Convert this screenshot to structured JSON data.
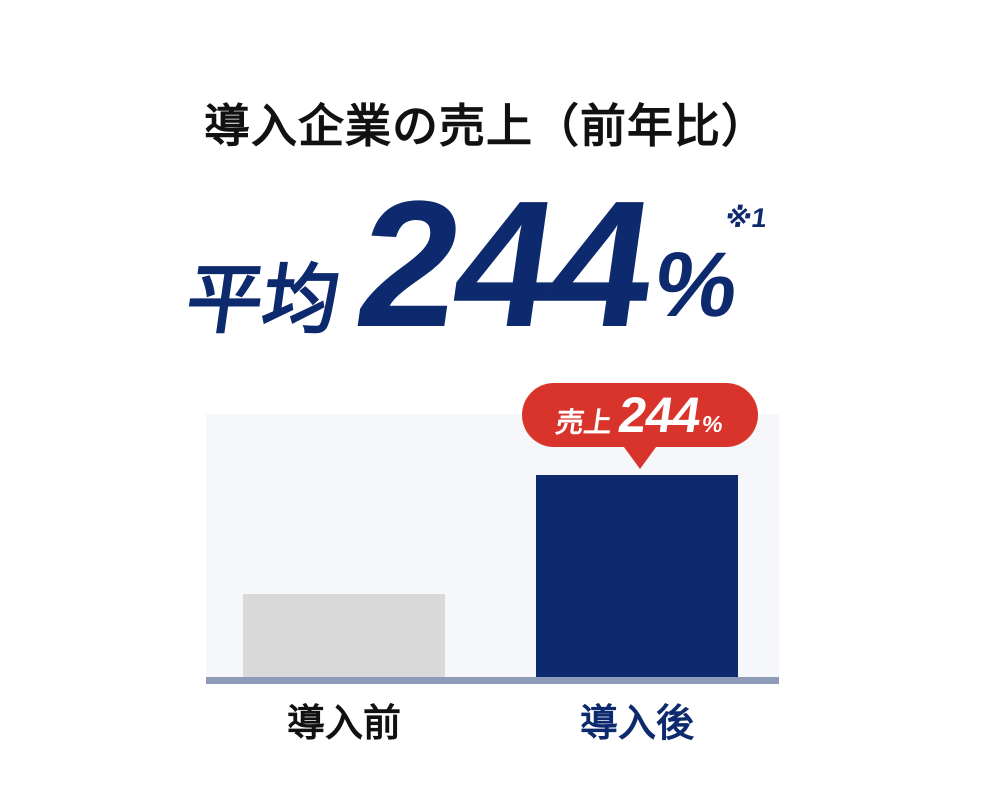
{
  "title": "導入企業の売上（前年比）",
  "stat": {
    "prefix": "平均",
    "value": "244",
    "unit": "%",
    "footnote": "※1"
  },
  "badge": {
    "prefix": "売上",
    "value": "244",
    "unit": "%"
  },
  "chart_data": {
    "type": "bar",
    "title": "導入企業の売上（前年比）",
    "categories": [
      "導入前",
      "導入後"
    ],
    "values": [
      100,
      244
    ],
    "unit": "%",
    "ylim": [
      0,
      320
    ],
    "grid": false,
    "legend": "none",
    "bar_colors": [
      "#D9D9D9",
      "#0D2A6E"
    ],
    "annotation": {
      "target": "導入後",
      "text": "売上244%"
    }
  },
  "colors": {
    "navy": "#0D2A6E",
    "red": "#D9342B",
    "bar_gray": "#D9D9D9",
    "chart_bg": "#F6F7FA",
    "baseline": "#8E9BB9",
    "title_text": "#111111",
    "white": "#FFFFFF"
  }
}
